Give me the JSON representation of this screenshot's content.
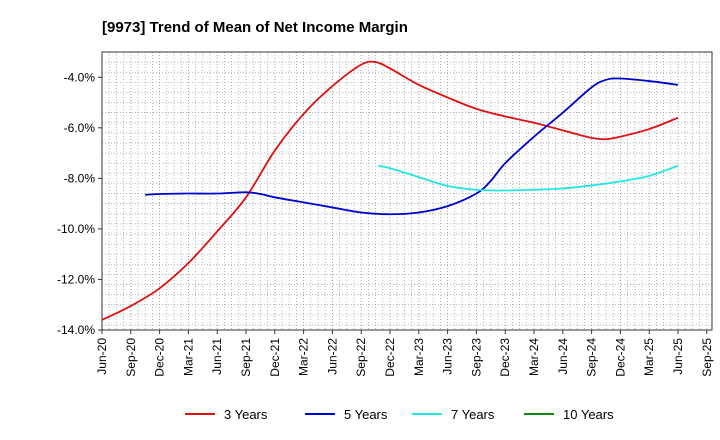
{
  "chart_data": {
    "type": "line",
    "title": "[9973]  Trend of Mean of Net Income Margin",
    "xlabel": "",
    "ylabel": "",
    "x_tick_labels": [
      "Jun-20",
      "Sep-20",
      "Dec-20",
      "Mar-21",
      "Jun-21",
      "Sep-21",
      "Dec-21",
      "Mar-22",
      "Jun-22",
      "Sep-22",
      "Dec-22",
      "Mar-23",
      "Jun-23",
      "Sep-23",
      "Dec-23",
      "Mar-24",
      "Jun-24",
      "Sep-24",
      "Dec-24",
      "Mar-25",
      "Jun-25",
      "Sep-25"
    ],
    "y_tick_labels": [
      "-4.0%",
      "-6.0%",
      "-8.0%",
      "-10.0%",
      "-12.0%",
      "-14.0%"
    ],
    "y_ticks": [
      -4,
      -6,
      -8,
      -10,
      -12,
      -14
    ],
    "ylim": [
      -14,
      -3
    ],
    "grid": true,
    "legend_position": "bottom",
    "series": [
      {
        "name": "3 Years",
        "color": "#dd1111",
        "values": [
          [
            0,
            -13.6
          ],
          [
            1,
            -13.05
          ],
          [
            2,
            -12.35
          ],
          [
            3,
            -11.35
          ],
          [
            4,
            -10.1
          ],
          [
            5,
            -8.75
          ],
          [
            6,
            -6.9
          ],
          [
            7,
            -5.45
          ],
          [
            8,
            -4.35
          ],
          [
            9,
            -3.5
          ],
          [
            9.5,
            -3.4
          ],
          [
            10,
            -3.65
          ],
          [
            11,
            -4.3
          ],
          [
            12,
            -4.8
          ],
          [
            13,
            -5.25
          ],
          [
            14,
            -5.55
          ],
          [
            15,
            -5.8
          ],
          [
            16,
            -6.1
          ],
          [
            17,
            -6.4
          ],
          [
            17.5,
            -6.45
          ],
          [
            18,
            -6.35
          ],
          [
            19,
            -6.05
          ],
          [
            20,
            -5.6
          ]
        ]
      },
      {
        "name": "5 Years",
        "color": "#0000cc",
        "values": [
          [
            1.5,
            -8.65
          ],
          [
            2,
            -8.62
          ],
          [
            3,
            -8.6
          ],
          [
            4,
            -8.6
          ],
          [
            5,
            -8.55
          ],
          [
            5.5,
            -8.62
          ],
          [
            6,
            -8.75
          ],
          [
            7,
            -8.95
          ],
          [
            8,
            -9.15
          ],
          [
            9,
            -9.35
          ],
          [
            10,
            -9.42
          ],
          [
            11,
            -9.35
          ],
          [
            12,
            -9.1
          ],
          [
            13,
            -8.6
          ],
          [
            13.5,
            -8.1
          ],
          [
            14,
            -7.4
          ],
          [
            15,
            -6.35
          ],
          [
            16,
            -5.4
          ],
          [
            17,
            -4.4
          ],
          [
            17.5,
            -4.1
          ],
          [
            18,
            -4.05
          ],
          [
            19,
            -4.15
          ],
          [
            20,
            -4.3
          ]
        ]
      },
      {
        "name": "7 Years",
        "color": "#22e6e6",
        "values": [
          [
            9.6,
            -7.5
          ],
          [
            10,
            -7.6
          ],
          [
            11,
            -7.95
          ],
          [
            12,
            -8.3
          ],
          [
            13,
            -8.45
          ],
          [
            14,
            -8.48
          ],
          [
            15,
            -8.45
          ],
          [
            16,
            -8.4
          ],
          [
            17,
            -8.28
          ],
          [
            18,
            -8.12
          ],
          [
            19,
            -7.9
          ],
          [
            20,
            -7.5
          ]
        ]
      },
      {
        "name": "10 Years",
        "color": "#118811",
        "values": []
      }
    ]
  }
}
